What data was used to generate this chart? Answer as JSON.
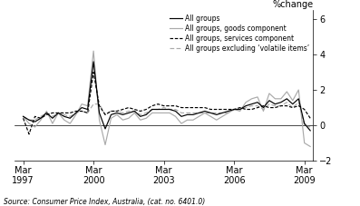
{
  "ylabel": "%change",
  "source": "Source: Consumer Price Index, Australia, (cat. no. 6401.0)",
  "ylim": [
    -2,
    6.5
  ],
  "yticks": [
    -2,
    0,
    2,
    4,
    6
  ],
  "x_tick_positions": [
    0,
    12,
    24,
    36,
    48
  ],
  "x_tick_labels": [
    "Mar\n1997",
    "Mar\n2000",
    "Mar\n2003",
    "Mar\n2006",
    "Mar\n2009"
  ],
  "legend_labels": [
    "All groups",
    "All groups, goods component",
    "All groups, services component",
    "All groups excluding ‘volatile items’"
  ],
  "all_groups": [
    0.5,
    0.3,
    0.2,
    0.4,
    0.7,
    0.4,
    0.7,
    0.5,
    0.4,
    0.7,
    1.0,
    0.9,
    3.6,
    0.7,
    -0.2,
    0.6,
    0.7,
    0.6,
    0.7,
    0.8,
    0.5,
    0.6,
    0.9,
    0.9,
    0.9,
    0.9,
    0.8,
    0.5,
    0.6,
    0.6,
    0.7,
    0.8,
    0.7,
    0.6,
    0.7,
    0.8,
    0.9,
    0.9,
    1.1,
    1.2,
    1.3,
    1.0,
    1.4,
    1.2,
    1.3,
    1.5,
    1.2,
    1.5,
    0.1,
    -0.3
  ],
  "goods": [
    0.5,
    0.1,
    -0.1,
    0.3,
    0.8,
    0.1,
    0.7,
    0.3,
    0.1,
    0.6,
    1.2,
    1.1,
    4.2,
    0.3,
    -1.1,
    0.4,
    0.6,
    0.3,
    0.4,
    0.7,
    0.3,
    0.4,
    0.7,
    0.7,
    0.7,
    0.7,
    0.5,
    0.1,
    0.3,
    0.3,
    0.5,
    0.7,
    0.5,
    0.3,
    0.5,
    0.7,
    0.9,
    0.8,
    1.3,
    1.5,
    1.6,
    0.8,
    1.8,
    1.5,
    1.5,
    1.9,
    1.4,
    2.0,
    -1.0,
    -1.2
  ],
  "services": [
    0.4,
    -0.5,
    0.5,
    0.4,
    0.6,
    0.7,
    0.7,
    0.7,
    0.7,
    0.8,
    0.8,
    0.7,
    3.0,
    1.1,
    0.6,
    0.8,
    0.8,
    0.9,
    1.0,
    0.9,
    0.8,
    0.9,
    1.1,
    1.2,
    1.1,
    1.1,
    1.1,
    1.0,
    1.0,
    1.0,
    1.0,
    1.0,
    0.9,
    0.9,
    0.9,
    0.9,
    0.9,
    1.0,
    0.9,
    0.9,
    1.0,
    1.1,
    1.0,
    1.0,
    1.1,
    1.1,
    1.0,
    1.1,
    0.9,
    0.4
  ],
  "excl_vol": [
    0.5,
    0.3,
    0.3,
    0.5,
    0.7,
    0.5,
    0.7,
    0.6,
    0.5,
    0.7,
    0.8,
    0.7,
    1.2,
    1.2,
    0.6,
    0.8,
    0.8,
    0.7,
    0.8,
    0.8,
    0.6,
    0.7,
    0.9,
    0.9,
    1.0,
    0.9,
    0.9,
    0.7,
    0.7,
    0.7,
    0.7,
    0.7,
    0.7,
    0.7,
    0.7,
    0.7,
    0.9,
    0.9,
    1.0,
    1.1,
    1.1,
    0.9,
    1.2,
    1.1,
    1.1,
    1.3,
    1.0,
    1.3,
    0.0,
    -0.1
  ],
  "line_colors": [
    "#000000",
    "#aaaaaa",
    "#000000",
    "#aaaaaa"
  ],
  "line_styles": [
    "solid",
    "solid",
    "dashed",
    "dashed"
  ],
  "linewidth": 0.85,
  "bg_color": "#ffffff"
}
